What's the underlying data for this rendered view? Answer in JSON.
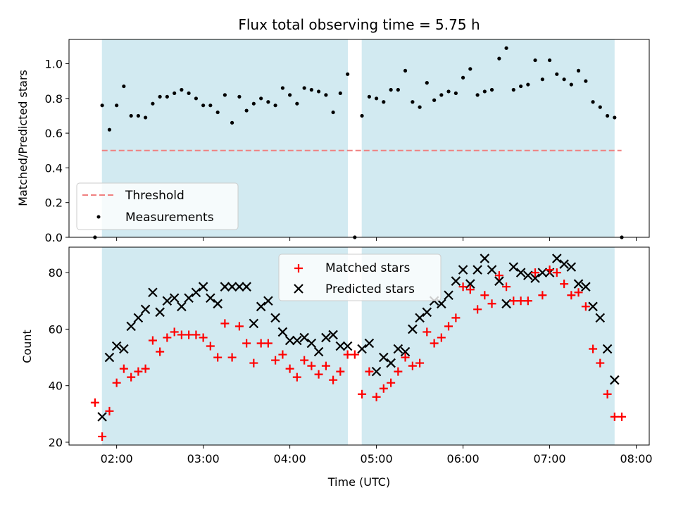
{
  "chart_data": [
    {
      "type": "scatter",
      "title": "Flux total observing time = 5.75 h",
      "ylabel": "Matched/Predicted stars",
      "xlabel": "",
      "x_unit": "hours UTC",
      "xlim": [
        1.45,
        8.15
      ],
      "ylim": [
        0.0,
        1.14
      ],
      "yticks": [
        0.0,
        0.2,
        0.4,
        0.6,
        0.8,
        1.0
      ],
      "ytick_labels": [
        "0.0",
        "0.2",
        "0.4",
        "0.6",
        "0.8",
        "1.0"
      ],
      "xticks": [
        2,
        3,
        4,
        5,
        6,
        7,
        8
      ],
      "shaded_intervals": [
        [
          1.83,
          4.67
        ],
        [
          4.83,
          7.75
        ]
      ],
      "shade_color": "#add8e6",
      "threshold": {
        "name": "Threshold",
        "value": 0.5,
        "x_range": [
          1.83,
          7.83
        ],
        "color": "#f08080"
      },
      "legend_position": "lower-left",
      "series": [
        {
          "name": "Measurements",
          "color": "#000000",
          "x": [
            1.75,
            1.833,
            1.917,
            2.0,
            2.083,
            2.167,
            2.25,
            2.333,
            2.417,
            2.5,
            2.583,
            2.667,
            2.75,
            2.833,
            2.917,
            3.0,
            3.083,
            3.167,
            3.25,
            3.333,
            3.417,
            3.5,
            3.583,
            3.667,
            3.75,
            3.833,
            3.917,
            4.0,
            4.083,
            4.167,
            4.25,
            4.333,
            4.417,
            4.5,
            4.583,
            4.667,
            4.75,
            4.833,
            4.917,
            5.0,
            5.083,
            5.167,
            5.25,
            5.333,
            5.417,
            5.5,
            5.583,
            5.667,
            5.75,
            5.833,
            5.917,
            6.0,
            6.083,
            6.167,
            6.25,
            6.333,
            6.417,
            6.5,
            6.583,
            6.667,
            6.75,
            6.833,
            6.917,
            7.0,
            7.083,
            7.167,
            7.25,
            7.333,
            7.417,
            7.5,
            7.583,
            7.667,
            7.75,
            7.833
          ],
          "y": [
            0.0,
            0.76,
            0.62,
            0.76,
            0.87,
            0.7,
            0.7,
            0.69,
            0.77,
            0.81,
            0.81,
            0.83,
            0.85,
            0.83,
            0.8,
            0.76,
            0.76,
            0.72,
            0.82,
            0.66,
            0.81,
            0.73,
            0.77,
            0.8,
            0.78,
            0.76,
            0.86,
            0.82,
            0.77,
            0.86,
            0.85,
            0.84,
            0.82,
            0.72,
            0.83,
            0.94,
            0.0,
            0.7,
            0.81,
            0.8,
            0.78,
            0.85,
            0.85,
            0.96,
            0.78,
            0.75,
            0.89,
            0.79,
            0.82,
            0.84,
            0.83,
            0.92,
            0.97,
            0.82,
            0.84,
            0.85,
            1.03,
            1.09,
            0.85,
            0.87,
            0.88,
            1.02,
            0.91,
            1.02,
            0.94,
            0.91,
            0.88,
            0.96,
            0.9,
            0.78,
            0.75,
            0.7,
            0.69,
            0.0
          ]
        }
      ]
    },
    {
      "type": "scatter",
      "title": "",
      "ylabel": "Count",
      "xlabel": "Time (UTC)",
      "x_unit": "hours UTC",
      "xlim": [
        1.45,
        8.15
      ],
      "ylim": [
        19,
        89
      ],
      "yticks": [
        20,
        40,
        60,
        80
      ],
      "ytick_labels": [
        "20",
        "40",
        "60",
        "80"
      ],
      "xticks": [
        2,
        3,
        4,
        5,
        6,
        7,
        8
      ],
      "xtick_labels": [
        "02:00",
        "03:00",
        "04:00",
        "05:00",
        "06:00",
        "07:00",
        "08:00"
      ],
      "shaded_intervals": [
        [
          1.83,
          4.67
        ],
        [
          4.83,
          7.75
        ]
      ],
      "shade_color": "#add8e6",
      "legend_position": "upper-center",
      "series": [
        {
          "name": "Matched stars",
          "marker": "plus",
          "color": "#ff0000",
          "x": [
            1.75,
            1.833,
            1.917,
            2.0,
            2.083,
            2.167,
            2.25,
            2.333,
            2.417,
            2.5,
            2.583,
            2.667,
            2.75,
            2.833,
            2.917,
            3.0,
            3.083,
            3.167,
            3.25,
            3.333,
            3.417,
            3.5,
            3.583,
            3.667,
            3.75,
            3.833,
            3.917,
            4.0,
            4.083,
            4.167,
            4.25,
            4.333,
            4.417,
            4.5,
            4.583,
            4.667,
            4.75,
            4.833,
            4.917,
            5.0,
            5.083,
            5.167,
            5.25,
            5.333,
            5.417,
            5.5,
            5.583,
            5.667,
            5.75,
            5.833,
            5.917,
            6.0,
            6.083,
            6.167,
            6.25,
            6.333,
            6.417,
            6.5,
            6.583,
            6.667,
            6.75,
            6.833,
            6.917,
            7.0,
            7.083,
            7.167,
            7.25,
            7.333,
            7.417,
            7.5,
            7.583,
            7.667,
            7.75,
            7.833
          ],
          "y": [
            34,
            22,
            31,
            41,
            46,
            43,
            45,
            46,
            56,
            52,
            57,
            59,
            58,
            58,
            58,
            57,
            54,
            50,
            62,
            50,
            61,
            55,
            48,
            55,
            55,
            49,
            51,
            46,
            43,
            49,
            47,
            44,
            47,
            42,
            45,
            51,
            51,
            37,
            45,
            36,
            39,
            41,
            45,
            50,
            47,
            48,
            59,
            55,
            57,
            61,
            64,
            75,
            74,
            67,
            72,
            69,
            79,
            75,
            70,
            70,
            70,
            80,
            72,
            81,
            80,
            76,
            72,
            73,
            68,
            53,
            48,
            37,
            29,
            29
          ]
        },
        {
          "name": "Predicted stars",
          "marker": "x",
          "color": "#000000",
          "x": [
            1.833,
            1.917,
            2.0,
            2.083,
            2.167,
            2.25,
            2.333,
            2.417,
            2.5,
            2.583,
            2.667,
            2.75,
            2.833,
            2.917,
            3.0,
            3.083,
            3.167,
            3.25,
            3.333,
            3.417,
            3.5,
            3.583,
            3.667,
            3.75,
            3.833,
            3.917,
            4.0,
            4.083,
            4.167,
            4.25,
            4.333,
            4.417,
            4.5,
            4.583,
            4.667,
            4.833,
            4.917,
            5.0,
            5.083,
            5.167,
            5.25,
            5.333,
            5.417,
            5.5,
            5.583,
            5.667,
            5.75,
            5.833,
            5.917,
            6.0,
            6.083,
            6.167,
            6.25,
            6.333,
            6.417,
            6.5,
            6.583,
            6.667,
            6.75,
            6.833,
            6.917,
            7.0,
            7.083,
            7.167,
            7.25,
            7.333,
            7.417,
            7.5,
            7.583,
            7.667,
            7.75
          ],
          "y": [
            29,
            50,
            54,
            53,
            61,
            64,
            67,
            73,
            66,
            70,
            71,
            68,
            71,
            73,
            75,
            71,
            69,
            75,
            75,
            75,
            75,
            62,
            68,
            70,
            64,
            59,
            56,
            56,
            57,
            55,
            52,
            57,
            58,
            54,
            54,
            53,
            55,
            45,
            50,
            48,
            53,
            52,
            60,
            64,
            66,
            70,
            69,
            72,
            77,
            81,
            76,
            81,
            85,
            81,
            77,
            69,
            82,
            80,
            79,
            78,
            80,
            80,
            85,
            83,
            82,
            76,
            75,
            68,
            64,
            53,
            42
          ]
        }
      ]
    }
  ]
}
